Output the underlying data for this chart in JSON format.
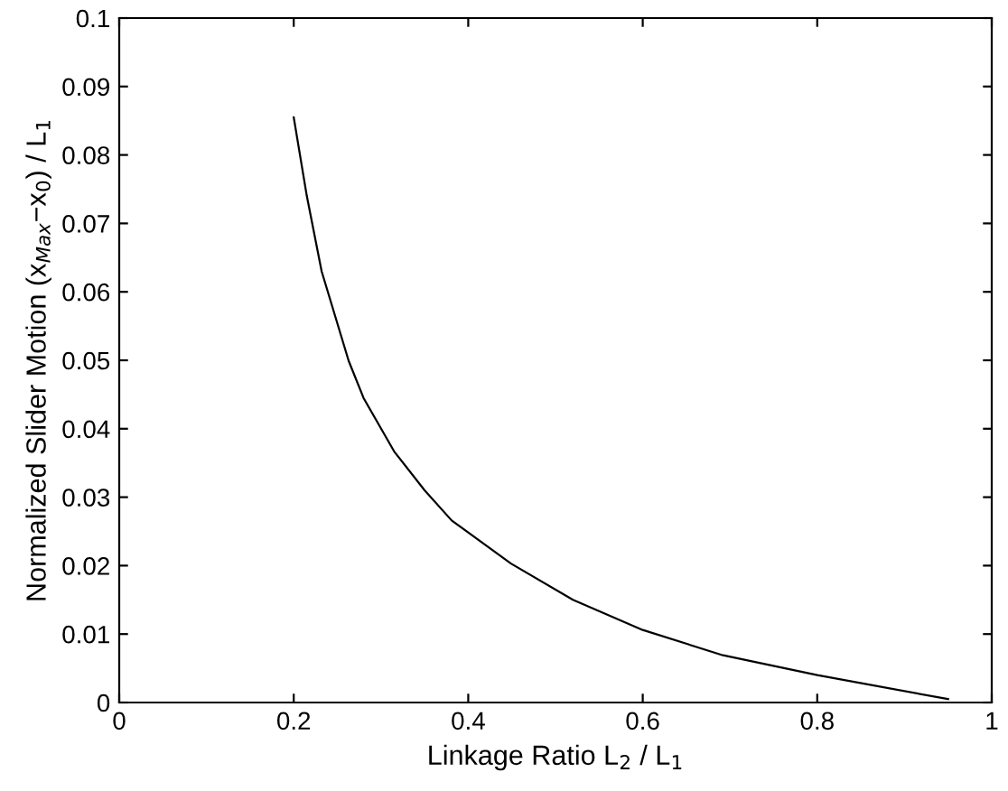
{
  "chart_data": {
    "type": "line",
    "xlabel": "Linkage Ratio L$_{2}$ / L$_{1}$",
    "ylabel": "Normalized Slider Motion (x$_{Max}$−x$_{0}$) / L$_{1}$",
    "x": [
      0.2,
      0.215,
      0.232,
      0.263,
      0.28,
      0.315,
      0.35,
      0.381,
      0.449,
      0.52,
      0.6,
      0.692,
      0.8,
      0.95
    ],
    "series": [
      {
        "color": "#000000",
        "values": [
          0.0855,
          0.074,
          0.063,
          0.0499,
          0.0445,
          0.0367,
          0.031,
          0.0266,
          0.0203,
          0.015,
          0.0106,
          0.0069,
          0.004,
          0.0005
        ]
      }
    ],
    "xlim": [
      0,
      1
    ],
    "ylim": [
      0,
      0.1
    ],
    "xticks": [
      0,
      0.2,
      0.4,
      0.6,
      0.8,
      1
    ],
    "yticks": [
      0,
      0.01,
      0.02,
      0.03,
      0.04,
      0.05,
      0.06,
      0.07,
      0.08,
      0.09,
      0.1
    ],
    "grid": false,
    "legend": false
  }
}
